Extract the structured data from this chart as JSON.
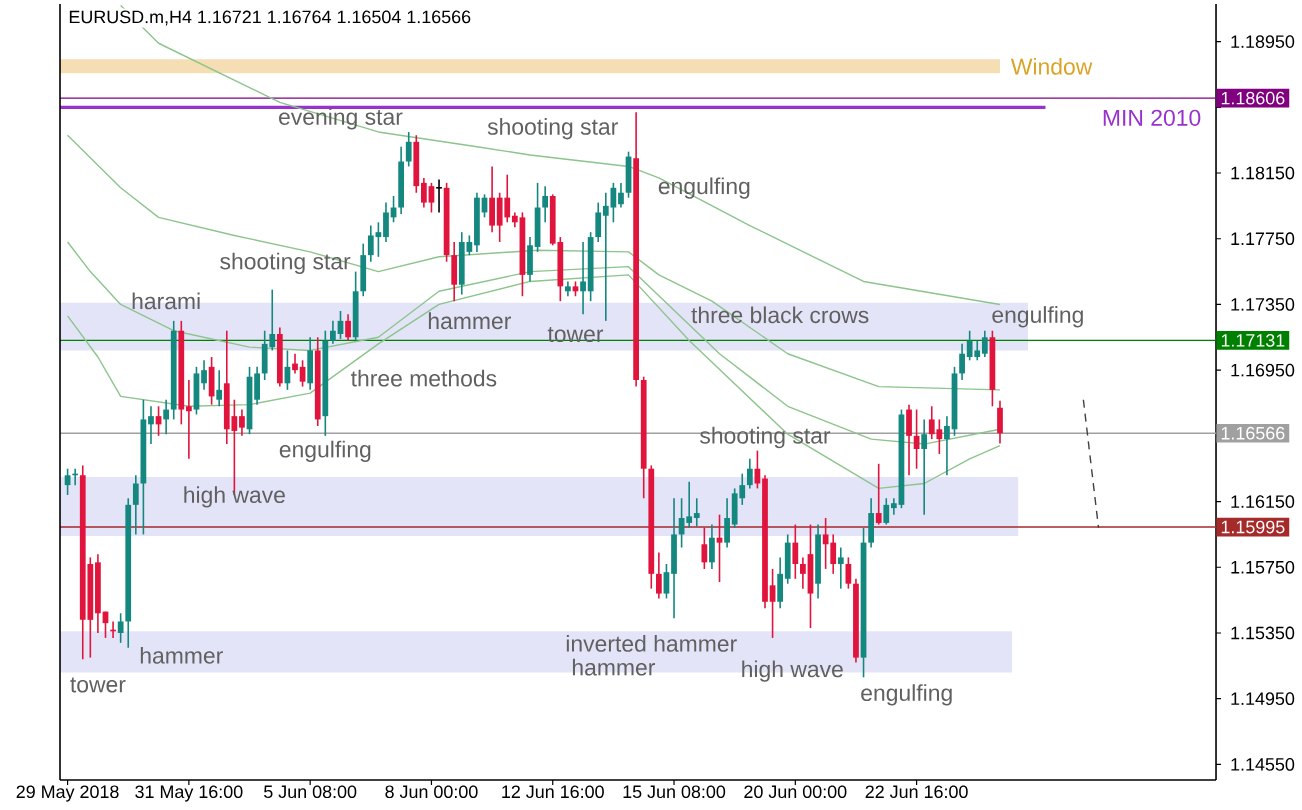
{
  "chart_data": {
    "type": "candlestick",
    "title": "EURUSD.m,H4 1.16721 1.16764 1.16504 1.16566",
    "categories": [
      "29 May 2018",
      null,
      null,
      null,
      null,
      null,
      null,
      null,
      null,
      null,
      null,
      null,
      null,
      null,
      null,
      null,
      "31 May 16:00",
      null,
      null,
      null,
      null,
      null,
      null,
      null,
      null,
      null,
      null,
      null,
      null,
      null,
      null,
      null,
      "5 Jun 08:00",
      null,
      null,
      null,
      null,
      null,
      null,
      null,
      null,
      null,
      null,
      null,
      null,
      null,
      null,
      null,
      "8 Jun 00:00",
      null,
      null,
      null,
      null,
      null,
      null,
      null,
      null,
      null,
      null,
      null,
      null,
      null,
      null,
      null,
      "12 Jun 16:00",
      null,
      null,
      null,
      null,
      null,
      null,
      null,
      null,
      null,
      null,
      null,
      null,
      null,
      null,
      null,
      "15 Jun 08:00",
      null,
      null,
      null,
      null,
      null,
      null,
      null,
      null,
      null,
      null,
      null,
      null,
      null,
      null,
      null,
      "20 Jun 00:00",
      null,
      null,
      null,
      null,
      null,
      null,
      null,
      null,
      null,
      null,
      null,
      null,
      null,
      null,
      null,
      "22 Jun 16:00",
      null,
      null,
      null,
      null,
      null,
      null,
      null,
      null,
      null,
      null,
      null,
      null,
      null,
      null,
      null,
      null,
      null,
      null,
      null,
      null,
      null,
      null,
      null,
      null,
      null,
      null,
      null,
      null,
      null,
      null,
      null,
      null,
      null,
      null,
      null,
      null,
      null,
      null,
      null
    ],
    "colors": [
      "#14877f",
      "#14877f",
      "#e0143c",
      "#e0143c",
      "#e0143c",
      "#e0143c",
      "#e0143c",
      "#14877f",
      "#14877f",
      "#14877f",
      "#14877f",
      "#14877f",
      "#e0143c",
      "#14877f",
      "#14877f",
      "#e0143c",
      "#e0143c",
      "#14877f",
      "#14877f",
      "#e0143c",
      "#14877f",
      "#e0143c",
      "#e0143c",
      "#e0143c",
      "#14877f",
      "#14877f",
      "#14877f",
      "#14877f",
      "#e0143c",
      "#14877f",
      "#e0143c",
      "#e0143c",
      "#14877f",
      "#e0143c",
      "#14877f",
      "#14877f",
      "#14877f",
      "#e0143c",
      "#14877f",
      "#14877f",
      "#14877f",
      "#14877f",
      "#14877f",
      "#14877f",
      "#14877f",
      "#14877f",
      "#e0143c",
      "#e0143c",
      "#e0143c",
      "#000000",
      "#e0143c",
      "#e0143c",
      "#14877f",
      "#14877f",
      "#14877f",
      "#14877f",
      "#e0143c",
      "#e0143c",
      "#e0143c",
      "#e0143c",
      "#e0143c",
      "#14877f",
      "#14877f",
      "#14877f",
      "#e0143c",
      "#e0143c",
      "#14877f",
      "#e0143c",
      "#14877f",
      "#14877f",
      "#14877f",
      "#14877f",
      "#14877f",
      "#14877f",
      "#14877f",
      "#e0143c",
      "#e0143c",
      "#e0143c",
      "#e0143c",
      "#14877f",
      "#14877f",
      "#14877f",
      "#14877f",
      "#14877f",
      "#e0143c",
      "#14877f",
      "#e0143c",
      "#14877f",
      "#14877f",
      "#14877f",
      "#14877f",
      "#e0143c",
      "#e0143c",
      "#e0143c",
      "#14877f",
      "#14877f",
      "#e0143c",
      "#e0143c",
      "#e0143c",
      "#14877f",
      "#e0143c",
      "#e0143c",
      "#14877f",
      "#e0143c",
      "#e0143c",
      "#14877f",
      "#14877f",
      "#e0143c",
      "#14877f",
      "#14877f",
      "#14877f",
      "#e0143c",
      "#e0143c",
      "#14877f",
      "#e0143c",
      "#e0143c",
      "#14877f",
      "#14877f",
      "#14877f",
      "#14877f",
      "#14877f",
      "#14877f",
      "#e0143c",
      "#e0143c",
      null,
      null,
      null,
      null,
      null,
      null,
      null,
      null,
      null,
      null,
      null,
      null,
      null,
      null,
      null,
      null,
      null,
      null,
      null,
      null,
      null,
      null,
      null,
      null,
      null,
      null,
      null,
      null
    ],
    "ohlc": [
      [
        1.1625,
        1.1635,
        1.1619,
        1.1631
      ],
      [
        1.1631,
        1.1635,
        1.1625,
        1.1632
      ],
      [
        1.1631,
        1.1637,
        1.1519,
        1.1543
      ],
      [
        1.1577,
        1.1581,
        1.152,
        1.1543
      ],
      [
        1.1578,
        1.1583,
        1.1535,
        1.1547
      ],
      [
        1.1548,
        1.1548,
        1.1532,
        1.1541
      ],
      [
        1.1537,
        1.1542,
        1.1532,
        1.1536
      ],
      [
        1.1535,
        1.1547,
        1.1529,
        1.1542
      ],
      [
        1.1542,
        1.1617,
        1.1526,
        1.1613
      ],
      [
        1.1613,
        1.1631,
        1.1595,
        1.1626
      ],
      [
        1.1626,
        1.1677,
        1.1595,
        1.1665
      ],
      [
        1.1662,
        1.1673,
        1.165,
        1.1667
      ],
      [
        1.1667,
        1.1673,
        1.1655,
        1.1662
      ],
      [
        1.1665,
        1.1677,
        1.1656,
        1.1671
      ],
      [
        1.1671,
        1.1725,
        1.1665,
        1.1719
      ],
      [
        1.1719,
        1.1725,
        1.1662,
        1.1671
      ],
      [
        1.1673,
        1.1689,
        1.1641,
        1.167
      ],
      [
        1.1671,
        1.1697,
        1.1668,
        1.1693
      ],
      [
        1.1687,
        1.1701,
        1.1683,
        1.1695
      ],
      [
        1.1697,
        1.1703,
        1.1674,
        1.1679
      ],
      [
        1.1677,
        1.1695,
        1.1673,
        1.1683
      ],
      [
        1.1687,
        1.1719,
        1.165,
        1.1659
      ],
      [
        1.1667,
        1.1677,
        1.1619,
        1.1658
      ],
      [
        1.1667,
        1.1671,
        1.1655,
        1.166
      ],
      [
        1.1659,
        1.1697,
        1.1656,
        1.1691
      ],
      [
        1.1677,
        1.1697,
        1.1674,
        1.1693
      ],
      [
        1.1693,
        1.1719,
        1.1689,
        1.1711
      ],
      [
        1.1709,
        1.1744,
        1.1707,
        1.1717
      ],
      [
        1.1717,
        1.1721,
        1.1685,
        1.1687
      ],
      [
        1.1687,
        1.1707,
        1.1683,
        1.1697
      ],
      [
        1.1699,
        1.1705,
        1.1693,
        1.1695
      ],
      [
        1.1697,
        1.1701,
        1.1685,
        1.1688
      ],
      [
        1.1687,
        1.1715,
        1.1683,
        1.1707
      ],
      [
        1.1707,
        1.1715,
        1.1661,
        1.1665
      ],
      [
        1.1667,
        1.1719,
        1.1655,
        1.1713
      ],
      [
        1.1713,
        1.1725,
        1.1711,
        1.1719
      ],
      [
        1.1717,
        1.1731,
        1.1714,
        1.1725
      ],
      [
        1.1725,
        1.1729,
        1.1713,
        1.1715
      ],
      [
        1.1715,
        1.1755,
        1.1713,
        1.1743
      ],
      [
        1.1743,
        1.1772,
        1.174,
        1.1765
      ],
      [
        1.1765,
        1.1783,
        1.1761,
        1.1777
      ],
      [
        1.1776,
        1.1785,
        1.1764,
        1.1779
      ],
      [
        1.1776,
        1.1797,
        1.1773,
        1.1791
      ],
      [
        1.1788,
        1.1801,
        1.1785,
        1.1794
      ],
      [
        1.1794,
        1.1831,
        1.179,
        1.1822
      ],
      [
        1.1822,
        1.184,
        1.1819,
        1.1834
      ],
      [
        1.1834,
        1.1838,
        1.1803,
        1.1807
      ],
      [
        1.1809,
        1.1812,
        1.1794,
        1.1797
      ],
      [
        1.1807,
        1.1809,
        1.1791,
        1.1797
      ],
      [
        1.1806,
        1.1811,
        1.1791,
        1.1806
      ],
      [
        1.1806,
        1.1809,
        1.1761,
        1.1765
      ],
      [
        1.1765,
        1.1773,
        1.1737,
        1.1747
      ],
      [
        1.1747,
        1.1779,
        1.1741,
        1.1773
      ],
      [
        1.1767,
        1.1777,
        1.1765,
        1.1773
      ],
      [
        1.1771,
        1.1803,
        1.1767,
        1.18
      ],
      [
        1.1791,
        1.1802,
        1.1788,
        1.18
      ],
      [
        1.18,
        1.1819,
        1.1779,
        1.1783
      ],
      [
        1.18,
        1.1803,
        1.1773,
        1.1783
      ],
      [
        1.18,
        1.1814,
        1.1785,
        1.1788
      ],
      [
        1.1789,
        1.1791,
        1.1782,
        1.1785
      ],
      [
        1.1788,
        1.1791,
        1.174,
        1.1753
      ],
      [
        1.1753,
        1.1776,
        1.1749,
        1.1771
      ],
      [
        1.177,
        1.1809,
        1.1767,
        1.1794
      ],
      [
        1.1794,
        1.1807,
        1.1785,
        1.1801
      ],
      [
        1.1801,
        1.1802,
        1.1771,
        1.1772
      ],
      [
        1.1773,
        1.1776,
        1.1737,
        1.1746
      ],
      [
        1.1743,
        1.1749,
        1.174,
        1.1746
      ],
      [
        1.1746,
        1.1749,
        1.174,
        1.1743
      ],
      [
        1.1743,
        1.1773,
        1.1729,
        1.1749
      ],
      [
        1.1743,
        1.1779,
        1.1737,
        1.1776
      ],
      [
        1.1776,
        1.1797,
        1.1773,
        1.1791
      ],
      [
        1.1789,
        1.1803,
        1.1725,
        1.1795
      ],
      [
        1.1794,
        1.1809,
        1.1785,
        1.1806
      ],
      [
        1.1796,
        1.1809,
        1.1794,
        1.1803
      ],
      [
        1.1803,
        1.1828,
        1.18,
        1.1825
      ],
      [
        1.1824,
        1.1852,
        1.1685,
        1.1689
      ],
      [
        1.1689,
        1.1691,
        1.1617,
        1.1635
      ],
      [
        1.1635,
        1.1637,
        1.1562,
        1.1571
      ],
      [
        1.1571,
        1.1584,
        1.1556,
        1.1559
      ],
      [
        1.1559,
        1.1577,
        1.1556,
        1.1572
      ],
      [
        1.1571,
        1.1617,
        1.1544,
        1.1595
      ],
      [
        1.1595,
        1.1617,
        1.1587,
        1.1605
      ],
      [
        1.1602,
        1.1627,
        1.1599,
        1.1606
      ],
      [
        1.1605,
        1.1617,
        1.16,
        1.1608
      ],
      [
        1.1589,
        1.1599,
        1.1574,
        1.1578
      ],
      [
        1.1578,
        1.1601,
        1.1574,
        1.1593
      ],
      [
        1.1593,
        1.1607,
        1.1566,
        1.159
      ],
      [
        1.159,
        1.1617,
        1.1587,
        1.1605
      ],
      [
        1.1601,
        1.1623,
        1.1599,
        1.162
      ],
      [
        1.1617,
        1.1632,
        1.1613,
        1.1625
      ],
      [
        1.1625,
        1.1641,
        1.1623,
        1.1635
      ],
      [
        1.1635,
        1.1646,
        1.1623,
        1.1626
      ],
      [
        1.1629,
        1.1631,
        1.155,
        1.1554
      ],
      [
        1.1564,
        1.1574,
        1.1532,
        1.1554
      ],
      [
        1.1554,
        1.1581,
        1.155,
        1.1571
      ],
      [
        1.1568,
        1.1595,
        1.1565,
        1.159
      ],
      [
        1.159,
        1.1601,
        1.1568,
        1.1577
      ],
      [
        1.1577,
        1.1581,
        1.1562,
        1.1571
      ],
      [
        1.1583,
        1.1601,
        1.1538,
        1.1559
      ],
      [
        1.1565,
        1.1601,
        1.1556,
        1.1595
      ],
      [
        1.1595,
        1.1605,
        1.1574,
        1.1589
      ],
      [
        1.159,
        1.1595,
        1.1571,
        1.1577
      ],
      [
        1.1577,
        1.1587,
        1.1562,
        1.1581
      ],
      [
        1.1577,
        1.1581,
        1.1562,
        1.1565
      ],
      [
        1.1565,
        1.1568,
        1.1517,
        1.152
      ],
      [
        1.152,
        1.1599,
        1.1508,
        1.159
      ],
      [
        1.159,
        1.1617,
        1.1587,
        1.1608
      ],
      [
        1.1608,
        1.1638,
        1.1601,
        1.1602
      ],
      [
        1.1602,
        1.1617,
        1.1601,
        1.1613
      ],
      [
        1.1611,
        1.1617,
        1.1607,
        1.1614
      ],
      [
        1.1613,
        1.1671,
        1.1611,
        1.1668
      ],
      [
        1.1671,
        1.1674,
        1.1631,
        1.1655
      ],
      [
        1.1655,
        1.1671,
        1.1635,
        1.1647
      ],
      [
        1.1647,
        1.1665,
        1.1607,
        1.1656
      ],
      [
        1.1665,
        1.1673,
        1.1653,
        1.1656
      ],
      [
        1.1659,
        1.1665,
        1.1644,
        1.1653
      ],
      [
        1.1653,
        1.1667,
        1.1631,
        1.1661
      ],
      [
        1.1659,
        1.1697,
        1.1655,
        1.1693
      ],
      [
        1.1693,
        1.1711,
        1.1689,
        1.1705
      ],
      [
        1.1703,
        1.1719,
        1.1701,
        1.1713
      ],
      [
        1.1703,
        1.1713,
        1.1701,
        1.1707
      ],
      [
        1.1705,
        1.1719,
        1.1703,
        1.1715
      ],
      [
        1.1715,
        1.1719,
        1.1673,
        1.1683
      ],
      [
        1.16721,
        1.16764,
        1.16504,
        1.16566
      ],
      null,
      null,
      null,
      null,
      null,
      null,
      null,
      null,
      null,
      null,
      null,
      null,
      null,
      null,
      null,
      null,
      null,
      null,
      null,
      null,
      null,
      null,
      null,
      null,
      null,
      null,
      null,
      null
    ],
    "series": [
      {
        "type": "line",
        "color": "#8cc48c",
        "values": [
          null,
          null,
          null,
          null,
          null,
          null,
          null,
          1.1917,
          null,
          null,
          null,
          null,
          1.1894,
          null,
          null,
          null,
          null,
          null,
          null,
          null,
          null,
          null,
          null,
          null,
          null,
          null,
          null,
          null,
          1.1858,
          null,
          null,
          null,
          null,
          null,
          null,
          null,
          null,
          null,
          null,
          null,
          null,
          1.184,
          null,
          null,
          null,
          null,
          null,
          null,
          null,
          null,
          null,
          null,
          null,
          null,
          1.1831,
          null,
          null,
          null,
          null,
          null,
          null,
          1.1826,
          null,
          null,
          null,
          null,
          null,
          null,
          null,
          null,
          null,
          null,
          null,
          null,
          1.1819,
          null,
          null,
          null,
          1.1812,
          null,
          null,
          null,
          null,
          null,
          null,
          null,
          null,
          null,
          null,
          null,
          1.1783,
          null,
          null,
          null,
          null,
          null,
          null,
          null,
          null,
          null,
          null,
          null,
          null,
          null,
          null,
          1.1749,
          null,
          null,
          null,
          null,
          null,
          null,
          null,
          null,
          null,
          null,
          null,
          null,
          null,
          null,
          null,
          null,
          null,
          1.1735,
          null,
          null,
          null,
          null,
          null,
          null,
          null,
          null,
          null,
          null,
          null,
          null,
          null,
          null,
          null,
          null,
          null,
          null,
          null,
          null,
          null,
          null,
          null,
          null,
          null,
          null,
          null,
          null
        ]
      },
      {
        "type": "line",
        "color": "#8cc48c",
        "values": [
          1.1838,
          null,
          null,
          null,
          null,
          null,
          null,
          1.1806,
          null,
          null,
          null,
          null,
          1.1788,
          null,
          null,
          null,
          null,
          null,
          null,
          null,
          null,
          null,
          1.1777,
          null,
          null,
          null,
          null,
          null,
          null,
          null,
          null,
          null,
          1.1767,
          null,
          null,
          null,
          null,
          null,
          null,
          null,
          null,
          1.1755,
          null,
          null,
          null,
          null,
          null,
          null,
          null,
          1.1764,
          null,
          null,
          null,
          null,
          null,
          null,
          null,
          null,
          null,
          null,
          null,
          null,
          1.1768,
          null,
          null,
          null,
          null,
          null,
          null,
          null,
          null,
          null,
          null,
          null,
          1.1767,
          null,
          null,
          null,
          1.1753,
          null,
          null,
          null,
          null,
          null,
          null,
          1.1737,
          null,
          null,
          null,
          null,
          null,
          null,
          null,
          null,
          null,
          1.1705,
          null,
          null,
          null,
          null,
          null,
          null,
          null,
          null,
          null,
          null,
          null,
          1.1685,
          null,
          null,
          null,
          null,
          null,
          null,
          null,
          null,
          null,
          null,
          null,
          null,
          null,
          null,
          null,
          1.1683,
          null,
          null,
          null,
          null,
          null,
          null,
          null,
          null,
          null,
          null,
          null,
          null,
          null,
          null,
          null,
          null,
          null,
          null,
          null,
          null,
          null,
          null,
          null,
          null,
          null,
          null,
          null,
          null
        ]
      },
      {
        "type": "line",
        "color": "#8cc48c",
        "values": [
          1.1773,
          null,
          null,
          1.1755,
          null,
          null,
          null,
          1.1735,
          null,
          null,
          null,
          null,
          null,
          null,
          1.1719,
          null,
          null,
          null,
          null,
          null,
          null,
          null,
          null,
          null,
          1.1709,
          null,
          null,
          null,
          null,
          null,
          null,
          null,
          1.1707,
          null,
          null,
          null,
          null,
          null,
          null,
          null,
          null,
          1.1715,
          null,
          null,
          null,
          null,
          null,
          null,
          null,
          1.1743,
          null,
          null,
          null,
          null,
          null,
          null,
          null,
          null,
          null,
          null,
          null,
          1.1755,
          null,
          null,
          null,
          null,
          null,
          null,
          null,
          null,
          null,
          null,
          null,
          null,
          1.1758,
          null,
          null,
          null,
          null,
          null,
          null,
          null,
          null,
          null,
          null,
          null,
          1.1705,
          null,
          null,
          null,
          null,
          null,
          null,
          null,
          null,
          1.1673,
          null,
          null,
          null,
          null,
          null,
          null,
          null,
          null,
          null,
          null,
          1.1653,
          null,
          null,
          null,
          null,
          null,
          null,
          1.165,
          null,
          null,
          null,
          null,
          null,
          null,
          null,
          null,
          null,
          1.1659,
          null,
          null,
          null,
          null,
          null,
          null,
          null,
          null,
          null,
          null,
          null,
          null,
          null,
          null,
          null,
          null,
          null,
          null,
          null,
          null,
          null,
          null,
          null,
          null,
          null,
          null,
          null,
          null
        ]
      },
      {
        "type": "line",
        "color": "#8cc48c",
        "values": [
          1.1728,
          null,
          null,
          null,
          1.1703,
          null,
          null,
          1.1679,
          null,
          null,
          null,
          null,
          null,
          null,
          null,
          null,
          1.1673,
          null,
          null,
          null,
          null,
          null,
          null,
          null,
          1.1674,
          null,
          null,
          null,
          null,
          null,
          null,
          null,
          1.1681,
          null,
          null,
          null,
          null,
          null,
          null,
          null,
          null,
          1.1711,
          null,
          null,
          null,
          null,
          null,
          null,
          null,
          1.1735,
          null,
          null,
          null,
          null,
          null,
          null,
          null,
          null,
          null,
          null,
          null,
          1.1749,
          null,
          null,
          null,
          null,
          null,
          null,
          null,
          null,
          null,
          null,
          null,
          null,
          1.1753,
          null,
          null,
          null,
          null,
          null,
          null,
          null,
          1.1713,
          null,
          null,
          null,
          null,
          null,
          null,
          null,
          null,
          null,
          null,
          null,
          null,
          1.1656,
          null,
          null,
          null,
          null,
          null,
          null,
          null,
          null,
          null,
          null,
          null,
          1.1623,
          null,
          null,
          null,
          null,
          null,
          1.1626,
          null,
          null,
          null,
          null,
          null,
          1.1641,
          null,
          null,
          null,
          1.1649,
          null,
          null,
          null,
          null,
          null,
          null,
          null,
          null,
          null,
          null,
          null,
          null,
          null,
          null,
          null,
          null,
          null,
          null,
          null,
          null,
          null,
          null,
          null,
          null,
          null,
          null,
          null,
          null
        ]
      },
      {
        "type": "line",
        "color": "#404040",
        "line_style": "dashed",
        "values": [
          null,
          null,
          null,
          null,
          null,
          null,
          null,
          null,
          null,
          null,
          null,
          null,
          null,
          null,
          null,
          null,
          null,
          null,
          null,
          null,
          null,
          null,
          null,
          null,
          null,
          null,
          null,
          null,
          null,
          null,
          null,
          null,
          null,
          null,
          null,
          null,
          null,
          null,
          null,
          null,
          null,
          null,
          null,
          null,
          null,
          null,
          null,
          null,
          null,
          null,
          null,
          null,
          null,
          null,
          null,
          null,
          null,
          null,
          null,
          null,
          null,
          null,
          null,
          null,
          null,
          null,
          null,
          null,
          null,
          null,
          null,
          null,
          null,
          null,
          null,
          null,
          null,
          null,
          null,
          null,
          null,
          null,
          null,
          null,
          null,
          null,
          null,
          null,
          null,
          null,
          null,
          null,
          null,
          null,
          null,
          null,
          null,
          null,
          null,
          null,
          null,
          null,
          null,
          null,
          null,
          null,
          null,
          null,
          null,
          null,
          null,
          null,
          null,
          null,
          null,
          null,
          null,
          null,
          null,
          null,
          null,
          null,
          null,
          null,
          null,
          null,
          null,
          null,
          null,
          null,
          null,
          null,
          null,
          null,
          1.1677,
          null,
          1.1599,
          null,
          null,
          null,
          null,
          null,
          null,
          null,
          null,
          null,
          null,
          null,
          null,
          null,
          null,
          null
        ]
      }
    ],
    "ylim": [
      1.14455,
      1.19179
    ],
    "yticks": [
      {
        "value": 1.1455,
        "label": "1.14550"
      },
      {
        "value": 1.1495,
        "label": "1.14950"
      },
      {
        "value": 1.1535,
        "label": "1.15350"
      },
      {
        "value": 1.1575,
        "label": "1.15750"
      },
      {
        "value": 1.1615,
        "label": "1.16150"
      },
      {
        "value": 1.1655,
        "label": null
      },
      {
        "value": 1.1695,
        "label": "1.16950"
      },
      {
        "value": 1.1735,
        "label": "1.17350"
      },
      {
        "value": 1.1775,
        "label": "1.17750"
      },
      {
        "value": 1.1815,
        "label": "1.18150"
      },
      {
        "value": 1.1855,
        "label": null
      },
      {
        "value": 1.1895,
        "label": "1.18950"
      }
    ],
    "ref_lines": [
      {
        "axis": "y",
        "value": 1.18606,
        "label": "1.18606",
        "color": "#800080"
      },
      {
        "axis": "y",
        "value": 1.1855,
        "label": "MIN 2010",
        "color": "#9932cc"
      },
      {
        "axis": "y",
        "value": 1.17131,
        "label": "1.17131",
        "color": "#008000"
      },
      {
        "axis": "y",
        "value": 1.16566,
        "label": "1.16566",
        "color": "#a0a0a0"
      },
      {
        "axis": "y",
        "value": 1.15995,
        "label": "1.15995",
        "color": "#a52a2a"
      }
    ],
    "bands": [
      {
        "axis": "y",
        "from": 1.18757,
        "to": 1.18842,
        "label": "Window",
        "color": "#f5deb3"
      },
      {
        "axis": "y",
        "from": 1.1707,
        "to": 1.1736,
        "color": "#e4e4f8"
      },
      {
        "axis": "y",
        "from": 1.1594,
        "to": 1.163,
        "color": "#e4e4f8"
      },
      {
        "axis": "y",
        "from": 1.1511,
        "to": 1.1536,
        "color": "#e4e4f8"
      }
    ],
    "annotations": [
      "evening star",
      "shooting star",
      "engulfing",
      "shooting star",
      "harami",
      "hammer",
      "tower",
      "three black crows",
      "engulfing",
      "three methods",
      "engulfing",
      "high wave",
      "shooting star",
      "hammer",
      "tower",
      "inverted hammer",
      "hammer",
      "high wave",
      "engulfing"
    ]
  }
}
